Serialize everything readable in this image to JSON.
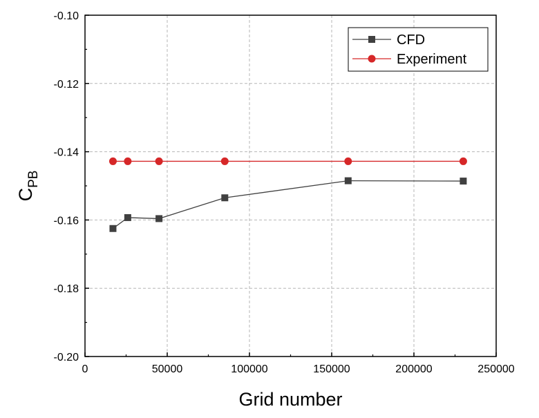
{
  "chart_data": {
    "type": "line",
    "xlabel": "Grid number",
    "ylabel_main": "C",
    "ylabel_sub": "PB",
    "xlim": [
      0,
      250000
    ],
    "ylim": [
      -0.2,
      -0.1
    ],
    "x_ticks": [
      0,
      50000,
      100000,
      150000,
      200000,
      250000
    ],
    "x_tick_labels": [
      "0",
      "50000",
      "100000",
      "150000",
      "200000",
      "250000"
    ],
    "y_ticks": [
      -0.2,
      -0.18,
      -0.16,
      -0.14,
      -0.12,
      -0.1
    ],
    "y_tick_labels": [
      "-0.20",
      "-0.18",
      "-0.16",
      "-0.14",
      "-0.12",
      "-0.10"
    ],
    "grid": true,
    "legend_position": "top-right",
    "series": [
      {
        "name": "CFD",
        "marker": "square",
        "color": "#404040",
        "x": [
          17000,
          26000,
          45000,
          85000,
          160000,
          230000
        ],
        "y": [
          -0.1625,
          -0.1593,
          -0.1596,
          -0.1535,
          -0.1485,
          -0.1486
        ]
      },
      {
        "name": "Experiment",
        "marker": "circle",
        "color": "#d62728",
        "x": [
          17000,
          26000,
          45000,
          85000,
          160000,
          230000
        ],
        "y": [
          -0.1428,
          -0.1428,
          -0.1428,
          -0.1428,
          -0.1428,
          -0.1428
        ]
      }
    ]
  }
}
